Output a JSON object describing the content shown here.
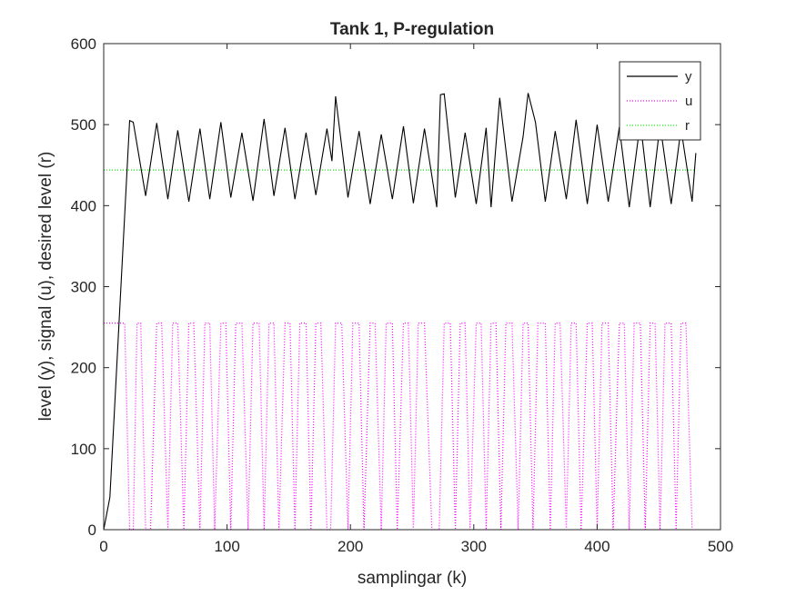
{
  "chart_data": {
    "type": "line",
    "title": "Tank 1, P-regulation",
    "xlabel": "samplingar (k)",
    "ylabel": "level (y), signal (u), desired level (r)",
    "xlim": [
      0,
      500
    ],
    "ylim": [
      0,
      600
    ],
    "x_ticks": [
      0,
      100,
      200,
      300,
      400,
      500
    ],
    "y_ticks": [
      0,
      100,
      200,
      300,
      400,
      500,
      600
    ],
    "grid": false,
    "legend_position": "top-right",
    "colors": {
      "y": "#000000",
      "u": "#ff00ff",
      "r": "#00ff00"
    },
    "series": [
      {
        "name": "y",
        "style": "solid",
        "x": [
          0,
          5,
          21,
          24,
          34,
          43,
          52,
          60,
          69,
          78,
          86,
          95,
          103,
          112,
          121,
          130,
          138,
          147,
          155,
          164,
          172,
          181,
          185,
          188,
          198,
          207,
          216,
          225,
          234,
          243,
          251,
          260,
          270,
          273,
          276,
          285,
          293,
          302,
          310,
          314,
          321,
          331,
          340,
          344,
          350,
          358,
          366,
          375,
          383,
          392,
          400,
          409,
          418,
          426,
          435,
          443,
          451,
          460,
          468,
          477,
          480
        ],
        "values": [
          0,
          40,
          505,
          503,
          412,
          502,
          408,
          493,
          405,
          495,
          408,
          503,
          410,
          490,
          406,
          507,
          412,
          496,
          408,
          490,
          413,
          495,
          455,
          535,
          410,
          492,
          402,
          488,
          408,
          498,
          403,
          495,
          398,
          537,
          538,
          410,
          490,
          402,
          496,
          398,
          533,
          405,
          485,
          539,
          503,
          405,
          492,
          408,
          506,
          402,
          500,
          405,
          497,
          398,
          503,
          398,
          500,
          402,
          495,
          405,
          465
        ]
      },
      {
        "name": "u",
        "style": "dotted",
        "x": [
          0,
          17,
          21,
          24,
          27,
          30,
          34,
          38,
          43,
          47,
          52,
          56,
          60,
          65,
          69,
          73,
          78,
          82,
          86,
          90,
          95,
          99,
          103,
          107,
          112,
          117,
          121,
          126,
          130,
          134,
          138,
          142,
          147,
          151,
          155,
          159,
          164,
          168,
          172,
          176,
          181,
          184,
          188,
          193,
          198,
          202,
          207,
          211,
          216,
          220,
          225,
          229,
          234,
          238,
          243,
          247,
          251,
          255,
          260,
          266,
          272,
          276,
          281,
          285,
          289,
          293,
          297,
          302,
          306,
          310,
          314,
          318,
          322,
          326,
          331,
          336,
          340,
          344,
          348,
          352,
          358,
          362,
          366,
          370,
          375,
          379,
          383,
          387,
          392,
          396,
          400,
          404,
          409,
          413,
          418,
          422,
          426,
          430,
          435,
          439,
          443,
          447,
          451,
          455,
          460,
          464,
          468,
          472,
          477
        ],
        "values": [
          255,
          255,
          0,
          0,
          255,
          255,
          0,
          0,
          255,
          255,
          0,
          255,
          255,
          0,
          255,
          255,
          0,
          255,
          255,
          0,
          255,
          255,
          0,
          255,
          255,
          0,
          255,
          255,
          0,
          255,
          255,
          0,
          255,
          255,
          0,
          255,
          255,
          0,
          255,
          255,
          0,
          0,
          255,
          255,
          0,
          255,
          255,
          0,
          255,
          255,
          0,
          255,
          255,
          0,
          255,
          255,
          0,
          255,
          255,
          0,
          0,
          255,
          255,
          0,
          255,
          255,
          0,
          255,
          255,
          0,
          255,
          255,
          0,
          255,
          255,
          0,
          255,
          255,
          0,
          255,
          255,
          0,
          255,
          255,
          0,
          255,
          255,
          0,
          255,
          255,
          0,
          255,
          255,
          0,
          255,
          255,
          0,
          255,
          255,
          0,
          255,
          255,
          0,
          255,
          255,
          0,
          255,
          255,
          0
        ]
      },
      {
        "name": "r",
        "style": "dotted",
        "x": [
          0,
          480
        ],
        "values": [
          444,
          444
        ]
      }
    ]
  }
}
